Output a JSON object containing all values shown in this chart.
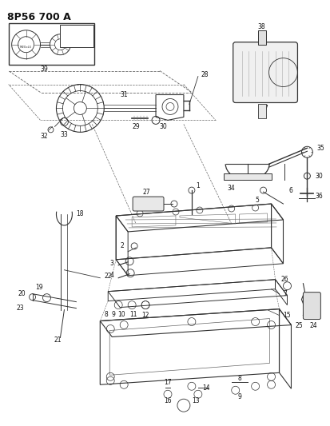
{
  "title": "8P56 700 A",
  "background_color": "#ffffff",
  "fig_width": 4.13,
  "fig_height": 5.33,
  "dpi": 100
}
